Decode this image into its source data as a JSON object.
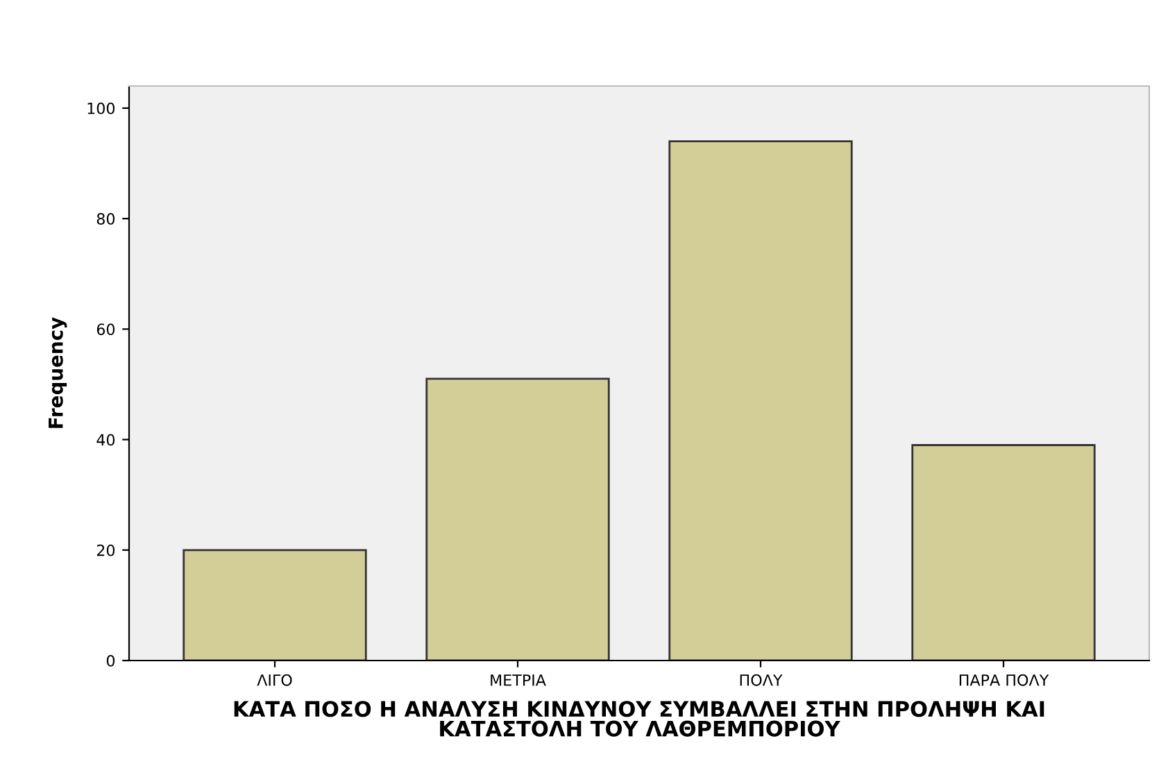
{
  "chart_data": {
    "type": "bar",
    "categories": [
      "ΛΙΓΟ",
      "ΜΕΤΡΙΑ",
      "ΠΟΛΥ",
      "ΠΑΡΑ ΠΟΛΥ"
    ],
    "values": [
      20,
      51,
      94,
      39
    ],
    "color": "#d3ce97",
    "xlabel": "ΚΑΤΑ ΠΟΣΟ Η ΑΝΑΛΥΣΗ ΚΙΝΔΥΝΟΥ ΣΥΜΒΑΛΛΕΙ ΣΤΗΝ ΠΡΟΛΗΨΗ ΚΑΙ\nΚΑΤΑΣΤΟΛΗ ΤΟΥ ΛΑΘΡΕΜΠΟΡΙΟΥ",
    "ylabel": "Frequency",
    "ylim": [
      0,
      104
    ],
    "yticks": [
      0,
      20,
      40,
      60,
      80,
      100
    ],
    "grid": false,
    "legend": false
  }
}
